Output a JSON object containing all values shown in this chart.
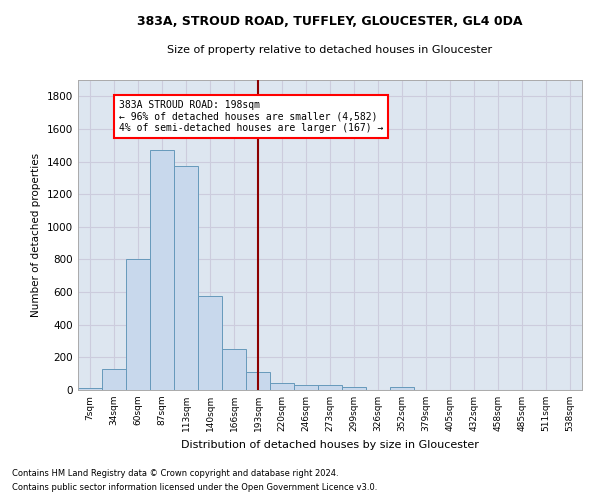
{
  "title_line1": "383A, STROUD ROAD, TUFFLEY, GLOUCESTER, GL4 0DA",
  "title_line2": "Size of property relative to detached houses in Gloucester",
  "xlabel": "Distribution of detached houses by size in Gloucester",
  "ylabel": "Number of detached properties",
  "bar_color": "#c8d8ec",
  "bar_edge_color": "#6699bb",
  "grid_color": "#ccccdd",
  "bg_color": "#dde6f0",
  "categories": [
    "7sqm",
    "34sqm",
    "60sqm",
    "87sqm",
    "113sqm",
    "140sqm",
    "166sqm",
    "193sqm",
    "220sqm",
    "246sqm",
    "273sqm",
    "299sqm",
    "326sqm",
    "352sqm",
    "379sqm",
    "405sqm",
    "432sqm",
    "458sqm",
    "485sqm",
    "511sqm",
    "538sqm"
  ],
  "values": [
    15,
    130,
    800,
    1470,
    1375,
    575,
    252,
    110,
    40,
    30,
    30,
    20,
    0,
    20,
    0,
    0,
    0,
    0,
    0,
    0,
    0
  ],
  "ylim": [
    0,
    1900
  ],
  "yticks": [
    0,
    200,
    400,
    600,
    800,
    1000,
    1200,
    1400,
    1600,
    1800
  ],
  "property_line_x": 7.0,
  "annotation_title": "383A STROUD ROAD: 198sqm",
  "annotation_line1": "← 96% of detached houses are smaller (4,582)",
  "annotation_line2": "4% of semi-detached houses are larger (167) →",
  "footnote1": "Contains HM Land Registry data © Crown copyright and database right 2024.",
  "footnote2": "Contains public sector information licensed under the Open Government Licence v3.0."
}
